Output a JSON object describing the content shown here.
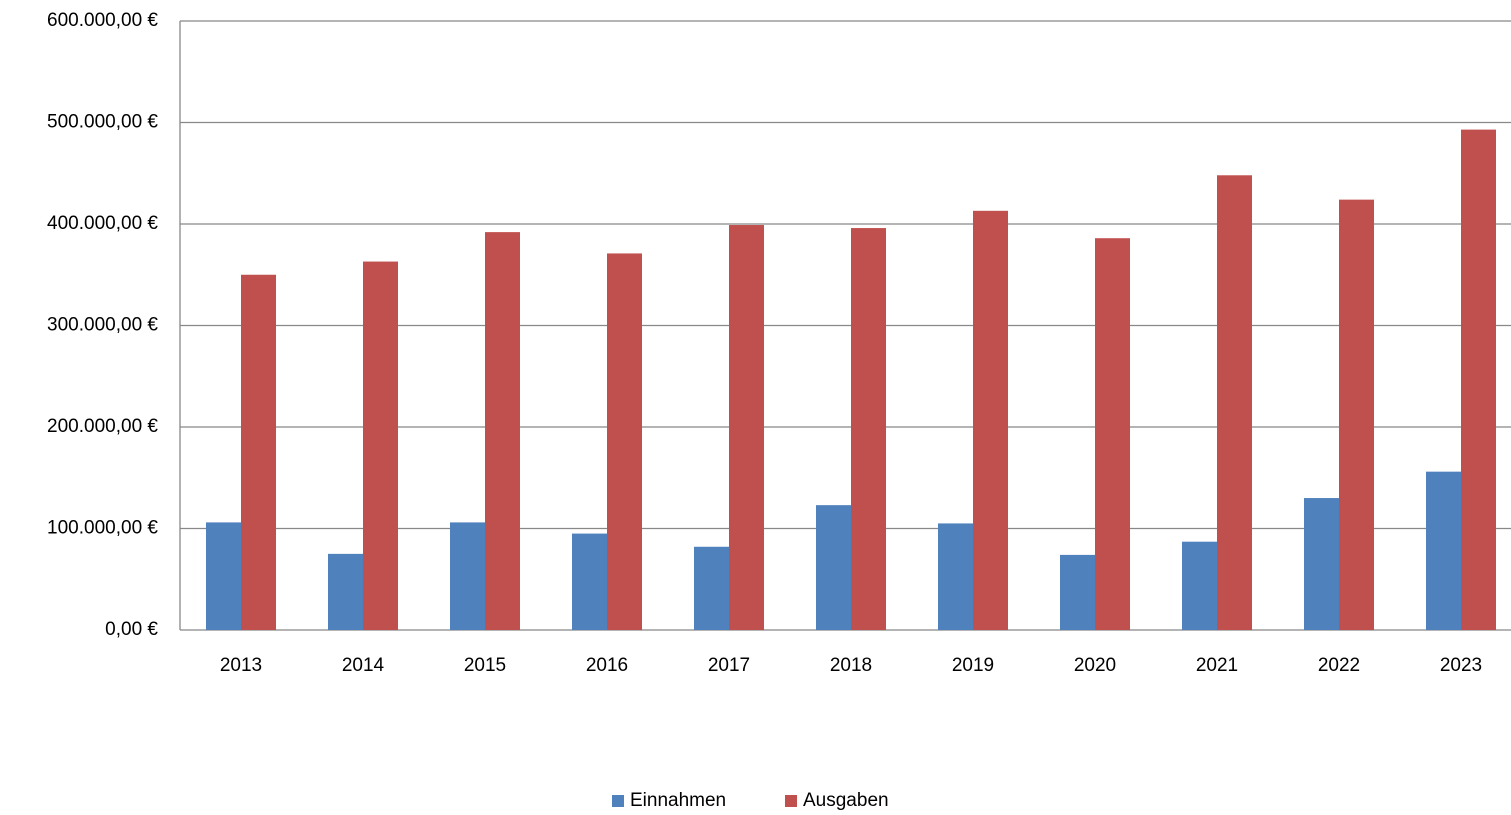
{
  "chart_data": {
    "type": "bar",
    "categories": [
      "2013",
      "2014",
      "2015",
      "2016",
      "2017",
      "2018",
      "2019",
      "2020",
      "2021",
      "2022",
      "2023"
    ],
    "series": [
      {
        "name": "Einnahmen",
        "color": "#4f81bd",
        "values": [
          106000,
          75000,
          106000,
          95000,
          82000,
          123000,
          105000,
          74000,
          87000,
          130000,
          156000
        ]
      },
      {
        "name": "Ausgaben",
        "color": "#c0504d",
        "values": [
          350000,
          363000,
          392000,
          371000,
          399000,
          396000,
          413000,
          386000,
          448000,
          424000,
          493000
        ]
      }
    ],
    "ylim": [
      0,
      600000
    ],
    "yticks": [
      {
        "value": 0,
        "label": "0,00 €"
      },
      {
        "value": 100000,
        "label": "100.000,00 €"
      },
      {
        "value": 200000,
        "label": "200.000,00 €"
      },
      {
        "value": 300000,
        "label": "300.000,00 €"
      },
      {
        "value": 400000,
        "label": "400.000,00 €"
      },
      {
        "value": 500000,
        "label": "500.000,00 €"
      },
      {
        "value": 600000,
        "label": "600.000,00 €"
      }
    ],
    "grid": true,
    "legend": "bottom"
  }
}
